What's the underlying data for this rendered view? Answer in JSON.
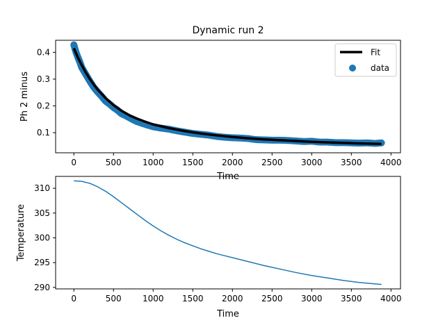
{
  "chart_data": [
    {
      "type": "scatter",
      "title": "Dynamic run 2",
      "xlabel": "Time",
      "ylabel": "Ph 2 minus",
      "xlim": [
        -230,
        4120
      ],
      "ylim": [
        0.025,
        0.445
      ],
      "xticks": [
        0,
        500,
        1000,
        1500,
        2000,
        2500,
        3000,
        3500,
        4000
      ],
      "yticks": [
        0.1,
        0.2,
        0.3,
        0.4
      ],
      "legend": {
        "placement": "top-right",
        "entries": [
          {
            "label": "Fit",
            "kind": "line",
            "color": "#000000"
          },
          {
            "label": "data",
            "kind": "marker",
            "color": "#1f77b4"
          }
        ]
      },
      "series": [
        {
          "name": "data",
          "kind": "scatter",
          "color": "#1f77b4",
          "x": [
            0,
            25,
            50,
            75,
            100,
            150,
            200,
            250,
            300,
            350,
            400,
            450,
            500,
            550,
            600,
            650,
            700,
            750,
            800,
            900,
            1000,
            1100,
            1200,
            1300,
            1400,
            1500,
            1600,
            1700,
            1800,
            1900,
            2000,
            2100,
            2200,
            2300,
            2400,
            2500,
            2600,
            2700,
            2800,
            2900,
            3000,
            3100,
            3200,
            3300,
            3400,
            3500,
            3600,
            3700,
            3800,
            3880
          ],
          "y": [
            0.428,
            0.402,
            0.382,
            0.364,
            0.343,
            0.318,
            0.293,
            0.27,
            0.252,
            0.236,
            0.218,
            0.207,
            0.194,
            0.184,
            0.171,
            0.164,
            0.156,
            0.148,
            0.141,
            0.131,
            0.122,
            0.117,
            0.113,
            0.107,
            0.102,
            0.097,
            0.094,
            0.091,
            0.086,
            0.083,
            0.081,
            0.08,
            0.078,
            0.074,
            0.073,
            0.072,
            0.072,
            0.071,
            0.069,
            0.067,
            0.068,
            0.065,
            0.065,
            0.063,
            0.063,
            0.062,
            0.061,
            0.062,
            0.06,
            0.062
          ]
        },
        {
          "name": "Fit",
          "kind": "line",
          "color": "#000000",
          "x": [
            0,
            50,
            100,
            150,
            200,
            250,
            300,
            400,
            500,
            600,
            700,
            800,
            900,
            1000,
            1200,
            1400,
            1600,
            1800,
            2000,
            2200,
            2400,
            2600,
            2800,
            3000,
            3200,
            3400,
            3600,
            3880
          ],
          "y": [
            0.415,
            0.381,
            0.352,
            0.325,
            0.301,
            0.28,
            0.261,
            0.229,
            0.203,
            0.182,
            0.165,
            0.152,
            0.141,
            0.131,
            0.117,
            0.106,
            0.097,
            0.09,
            0.084,
            0.079,
            0.075,
            0.072,
            0.069,
            0.066,
            0.064,
            0.062,
            0.06,
            0.058
          ]
        }
      ]
    },
    {
      "type": "line",
      "title": "",
      "xlabel": "Time",
      "ylabel": "Temperature",
      "xlim": [
        -230,
        4120
      ],
      "ylim": [
        289.7,
        312.4
      ],
      "xticks": [
        0,
        500,
        1000,
        1500,
        2000,
        2500,
        3000,
        3500,
        4000
      ],
      "yticks": [
        290,
        295,
        300,
        305,
        310
      ],
      "series": [
        {
          "name": "Temperature",
          "color": "#1f77b4",
          "x": [
            0,
            100,
            200,
            300,
            400,
            500,
            600,
            700,
            800,
            900,
            1000,
            1100,
            1200,
            1300,
            1400,
            1500,
            1600,
            1700,
            1800,
            1900,
            2000,
            2200,
            2400,
            2600,
            2800,
            3000,
            3200,
            3400,
            3600,
            3880
          ],
          "y": [
            311.5,
            311.4,
            311.0,
            310.3,
            309.4,
            308.3,
            307.1,
            305.9,
            304.7,
            303.5,
            302.4,
            301.4,
            300.5,
            299.7,
            299.0,
            298.4,
            297.8,
            297.3,
            296.8,
            296.4,
            296.0,
            295.2,
            294.4,
            293.7,
            293.0,
            292.4,
            291.9,
            291.4,
            291.0,
            290.6
          ]
        }
      ]
    }
  ]
}
